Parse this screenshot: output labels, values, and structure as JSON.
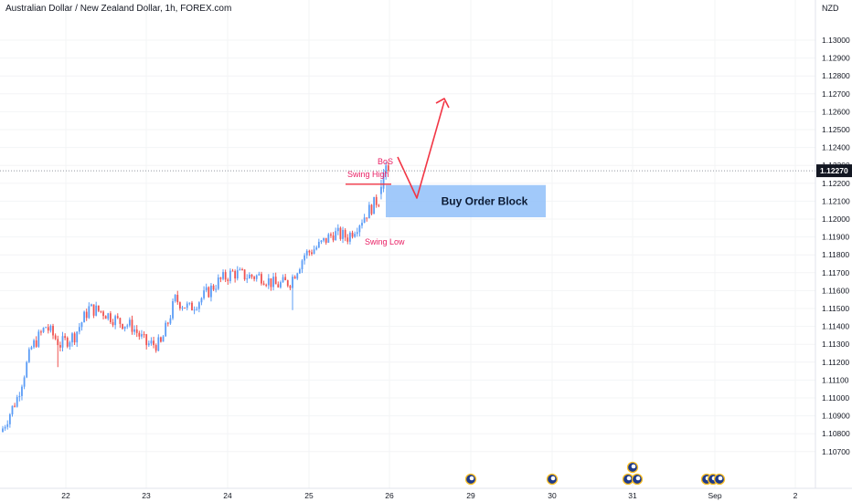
{
  "header": {
    "title": "Australian Dollar / New Zealand Dollar, 1h, FOREX.com",
    "currency": "NZD"
  },
  "colors": {
    "up": "#5b9cf6",
    "down": "#ef5350",
    "arrow": "#f23645",
    "label": "#e91e63",
    "order_block_fill": "#90bff9",
    "order_block_text": "#0b1a33",
    "price_tag_bg": "#131722",
    "axis_text": "#131722"
  },
  "chart_data": {
    "type": "candlestick",
    "symbol": "AUDNZD",
    "interval": "1h",
    "ylim": [
      1.1073,
      1.1315
    ],
    "y_ticks": [
      "1.13000",
      "1.12900",
      "1.12800",
      "1.12700",
      "1.12600",
      "1.12500",
      "1.12400",
      "1.12300",
      "1.12200",
      "1.12100",
      "1.12000",
      "1.11900",
      "1.11800",
      "1.11700",
      "1.11600",
      "1.11500",
      "1.11400",
      "1.11300",
      "1.11200",
      "1.11100",
      "1.11000",
      "1.10900",
      "1.10800",
      "1.10700"
    ],
    "x_ticks": [
      "22",
      "23",
      "24",
      "25",
      "26",
      "29",
      "30",
      "31",
      "Sep",
      "2"
    ],
    "last_price_label": "1.12270",
    "anchors": [
      [
        0,
        1.1083
      ],
      [
        6,
        1.11
      ],
      [
        12,
        1.1128
      ],
      [
        18,
        1.114
      ],
      [
        24,
        1.113
      ],
      [
        30,
        1.1135
      ],
      [
        36,
        1.115
      ],
      [
        42,
        1.1148
      ],
      [
        48,
        1.1143
      ],
      [
        54,
        1.114
      ],
      [
        60,
        1.113
      ],
      [
        66,
        1.113
      ],
      [
        72,
        1.1155
      ],
      [
        78,
        1.115
      ],
      [
        84,
        1.1157
      ],
      [
        90,
        1.1165
      ],
      [
        96,
        1.117
      ],
      [
        102,
        1.1168
      ],
      [
        108,
        1.1168
      ],
      [
        114,
        1.1163
      ],
      [
        120,
        1.1165
      ],
      [
        126,
        1.118
      ],
      [
        132,
        1.1185
      ],
      [
        138,
        1.1192
      ],
      [
        144,
        1.119
      ],
      [
        150,
        1.12
      ],
      [
        156,
        1.121
      ],
      [
        162,
        1.1215
      ]
    ],
    "breakout": [
      {
        "o": 1.1214,
        "h": 1.1222,
        "l": 1.1211,
        "c": 1.1218
      },
      {
        "o": 1.1217,
        "h": 1.1228,
        "l": 1.1215,
        "c": 1.1226
      },
      {
        "o": 1.1226,
        "h": 1.1232,
        "l": 1.1222,
        "c": 1.123
      },
      {
        "o": 1.123,
        "h": 1.1232,
        "l": 1.1226,
        "c": 1.1227
      }
    ],
    "annotations": {
      "order_block": {
        "label": "Buy Order Block",
        "price_top": 1.1219,
        "price_bottom": 1.1201
      },
      "swing_high": {
        "label": "Swing High",
        "price": 1.12195
      },
      "swing_low": {
        "label": "Swing Low"
      },
      "bos": {
        "label": "BoS"
      }
    },
    "events": [
      {
        "date": "29",
        "count": 1
      },
      {
        "date": "30",
        "count": 1
      },
      {
        "date": "31",
        "count": 3
      },
      {
        "date": "Sep",
        "count": 3
      }
    ]
  }
}
